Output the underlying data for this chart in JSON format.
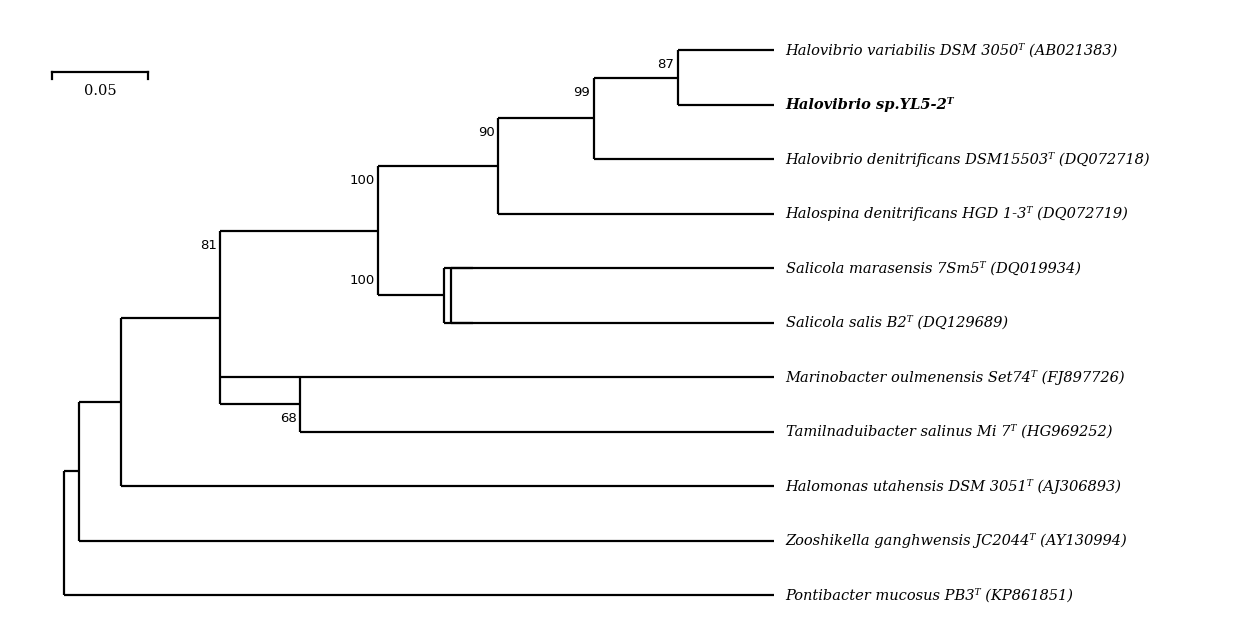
{
  "fig_width": 12.4,
  "fig_height": 6.33,
  "bg_color": "#ffffff",
  "line_color": "#000000",
  "line_width": 1.6,
  "taxa": [
    "Halovibrio variabilis DSM 3050ᵀ (AB021383)",
    "Halovibrio sp.YL5-2ᵀ",
    "Halovibrio denitrificans DSM15503ᵀ (DQ072718)",
    "Halospina denitrificans HGD 1-3ᵀ (DQ072719)",
    "Salicola marasensis 7Sm5ᵀ (DQ019934)",
    "Salicola salis B2ᵀ (DQ129689)",
    "Marinobacter oulmenensis Set74ᵀ (FJ897726)",
    "Tamilnaduibacter salinus Mi 7ᵀ (HG969252)",
    "Halomonas utahensis DSM 3051ᵀ (AJ306893)",
    "Zooshikella ganghwensis JC2044ᵀ (AY130994)",
    "Pontibacter mucosus PB3ᵀ (KP861851)"
  ],
  "font_size": 10.5,
  "bootstrap_font_size": 9.5,
  "scale_bar_label": "0.05"
}
